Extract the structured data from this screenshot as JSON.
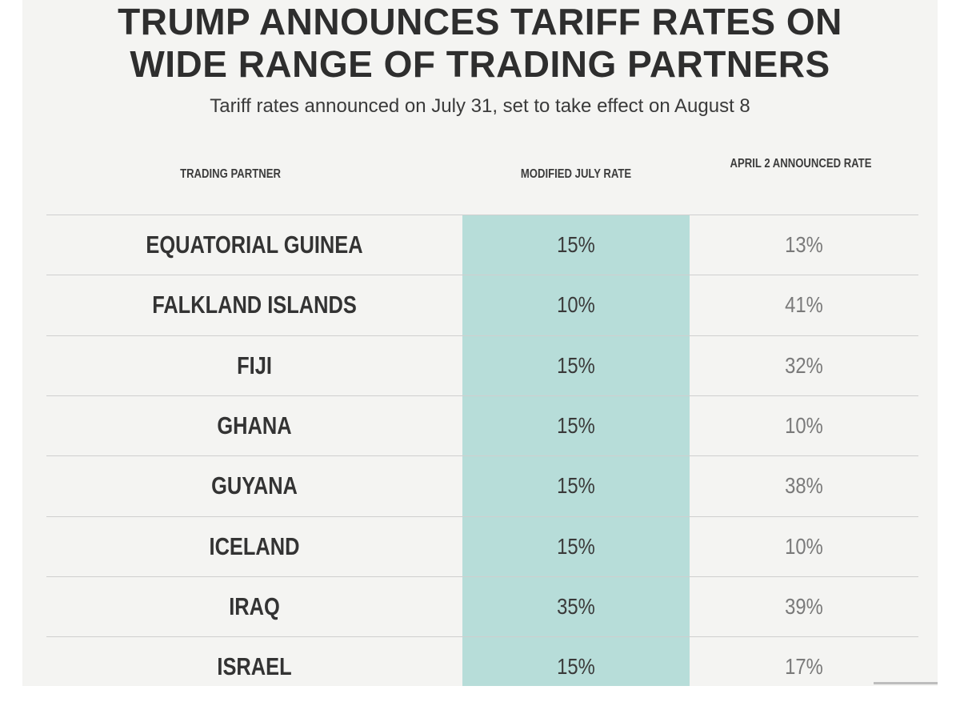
{
  "chart_data": {
    "type": "table",
    "title_lines": [
      "TRUMP ANNOUNCES TARIFF RATES ON",
      "WIDE RANGE OF TRADING PARTNERS"
    ],
    "subtitle": "Tariff rates announced on July 31, set to take effect on August 8",
    "columns": [
      "TRADING PARTNER",
      "MODIFIED JULY RATE",
      "APRIL 2 ANNOUNCED RATE"
    ],
    "rows": [
      {
        "partner": "EQUATORIAL GUINEA",
        "july_rate": "15%",
        "april_rate": "13%"
      },
      {
        "partner": "FALKLAND ISLANDS",
        "july_rate": "10%",
        "april_rate": "41%"
      },
      {
        "partner": "FIJI",
        "july_rate": "15%",
        "april_rate": "32%"
      },
      {
        "partner": "GHANA",
        "july_rate": "15%",
        "april_rate": "10%"
      },
      {
        "partner": "GUYANA",
        "july_rate": "15%",
        "april_rate": "38%"
      },
      {
        "partner": "ICELAND",
        "july_rate": "15%",
        "april_rate": "10%"
      },
      {
        "partner": "IRAQ",
        "july_rate": "35%",
        "april_rate": "39%"
      },
      {
        "partner": "ISRAEL",
        "july_rate": "15%",
        "april_rate": "17%"
      }
    ]
  },
  "colors": {
    "background": "#f4f4f2",
    "highlight_column": "#b7ddd9",
    "text_dark": "#333333",
    "text_light": "#7a7a7a",
    "rule": "#cfcfcf"
  }
}
